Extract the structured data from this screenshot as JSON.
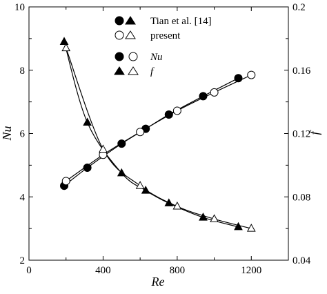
{
  "chart_data": {
    "type": "line",
    "xlabel": "Re",
    "ylabel_left": "Nu",
    "ylabel_right": "f",
    "xlim": [
      0,
      1400
    ],
    "ylim_left": [
      2,
      10
    ],
    "ylim_right": [
      0.04,
      0.2
    ],
    "x_ticks": [
      "0",
      "400",
      "800",
      "1200"
    ],
    "y_left_ticks": [
      "2",
      "4",
      "6",
      "8",
      "10"
    ],
    "y_right_ticks": [
      "0.04",
      "0.08",
      "0.12",
      "0.16",
      "0.2"
    ],
    "legend": {
      "source_label": "Tian et al. [14]",
      "present_label": "present",
      "nu_label": "Nu",
      "f_label": "f"
    },
    "series": [
      {
        "name": "Tian et al. [14] Nu",
        "axis": "left",
        "marker": "circle",
        "filled": true,
        "x": [
          190,
          315,
          500,
          630,
          755,
          940,
          1130
        ],
        "y": [
          4.35,
          4.92,
          5.68,
          6.15,
          6.6,
          7.18,
          7.75
        ]
      },
      {
        "name": "present Nu",
        "axis": "left",
        "marker": "circle",
        "filled": false,
        "x": [
          200,
          400,
          600,
          800,
          1000,
          1200
        ],
        "y": [
          4.5,
          5.33,
          6.05,
          6.72,
          7.3,
          7.85
        ]
      },
      {
        "name": "Tian et al. [14] f",
        "axis": "right",
        "marker": "triangle",
        "filled": true,
        "x": [
          190,
          315,
          500,
          630,
          755,
          940,
          1130
        ],
        "y": [
          0.178,
          0.127,
          0.095,
          0.084,
          0.076,
          0.067,
          0.061
        ]
      },
      {
        "name": "present f",
        "axis": "right",
        "marker": "triangle",
        "filled": false,
        "x": [
          200,
          400,
          600,
          800,
          1000,
          1200
        ],
        "y": [
          0.174,
          0.11,
          0.087,
          0.074,
          0.066,
          0.06
        ]
      }
    ]
  }
}
